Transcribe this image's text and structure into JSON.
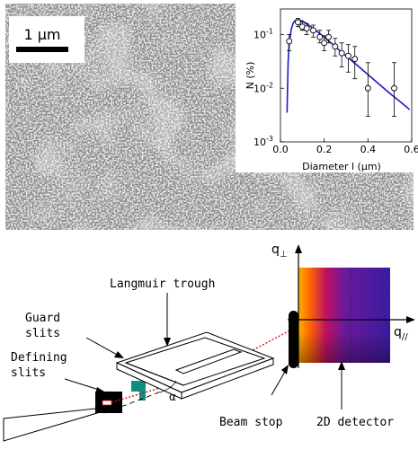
{
  "scale_bar": {
    "label": "1 µm"
  },
  "inset_chart": {
    "type": "scatter",
    "xlabel": "Diameter l (µm)",
    "ylabel": "N (%)",
    "x_ticks": [
      "0.0",
      "0.2",
      "0.4",
      "0.6"
    ],
    "y_ticks": [
      "10",
      "10",
      "10"
    ],
    "y_tick_exp": [
      "-3",
      "-2",
      "-1"
    ]
  },
  "chart_data": {
    "type": "scatter",
    "xlabel": "Diameter l (µm)",
    "ylabel": "N (%)",
    "xlim": [
      0,
      0.6
    ],
    "ylim": [
      0.001,
      0.3
    ],
    "y_scale": "log",
    "series": [
      {
        "kind": "points",
        "x": [
          0.04,
          0.08,
          0.1,
          0.12,
          0.15,
          0.18,
          0.2,
          0.22,
          0.25,
          0.28,
          0.31,
          0.34,
          0.4,
          0.52
        ],
        "y": [
          0.075,
          0.17,
          0.14,
          0.13,
          0.12,
          0.09,
          0.07,
          0.09,
          0.06,
          0.045,
          0.04,
          0.035,
          0.01,
          0.01
        ],
        "y_low": [
          0.05,
          0.14,
          0.12,
          0.1,
          0.09,
          0.07,
          0.05,
          0.07,
          0.04,
          0.025,
          0.02,
          0.015,
          0.003,
          0.003
        ],
        "y_high": [
          0.1,
          0.2,
          0.17,
          0.16,
          0.15,
          0.12,
          0.095,
          0.12,
          0.085,
          0.07,
          0.065,
          0.06,
          0.03,
          0.03
        ]
      },
      {
        "kind": "fit_curve",
        "color": "#1a1ad0",
        "x": [
          0.03,
          0.035,
          0.04,
          0.05,
          0.06,
          0.07,
          0.08,
          0.1,
          0.12,
          0.15,
          0.2,
          0.25,
          0.3,
          0.35,
          0.4,
          0.45,
          0.5,
          0.55,
          0.59
        ],
        "y": [
          0.0035,
          0.03,
          0.07,
          0.13,
          0.17,
          0.185,
          0.19,
          0.18,
          0.16,
          0.13,
          0.09,
          0.06,
          0.04,
          0.027,
          0.018,
          0.012,
          0.008,
          0.0055,
          0.004
        ]
      }
    ]
  },
  "diagram": {
    "langmuir_trough": "Langmuir trough",
    "guard_slits": [
      "Guard",
      "slits"
    ],
    "defining_slits": [
      "Defining",
      "slits"
    ],
    "alpha": "α",
    "beam_stop": "Beam stop",
    "detector": "2D detector",
    "q_perp": "q",
    "q_perp_sub": "⊥",
    "q_par": "q",
    "q_par_sub": "//"
  },
  "colors": {
    "guard_slit": "#0f8f80",
    "beam": "#d01010",
    "detector_hot": "#ff8a00",
    "detector_cold": "#3a1aa0"
  }
}
